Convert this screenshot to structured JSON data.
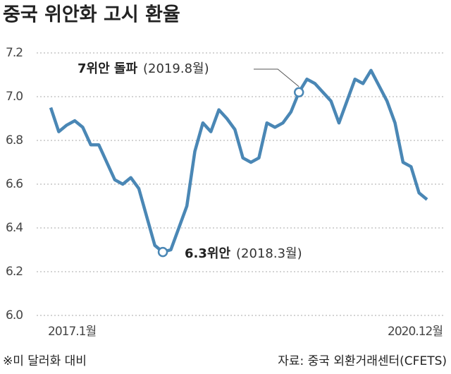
{
  "chart_data": {
    "type": "line",
    "title": "중국 위안화 고시 환율",
    "note": "※미 달러화 대비",
    "source": "자료: 중국 외환거래센터(CFETS)",
    "annotations": [
      {
        "bold": "6.3위안",
        "text": "(2018.3월)"
      },
      {
        "bold": "7위안 돌파",
        "text": "(2019.8월)"
      }
    ],
    "categories": [
      "2017.1월",
      null,
      null,
      null,
      null,
      null,
      null,
      null,
      null,
      null,
      null,
      null,
      null,
      null,
      null,
      null,
      null,
      null,
      null,
      null,
      null,
      null,
      null,
      null,
      null,
      null,
      null,
      null,
      null,
      null,
      null,
      null,
      null,
      null,
      null,
      null,
      null,
      null,
      null,
      null,
      null,
      null,
      null,
      null,
      null,
      null,
      null,
      "2020.12월"
    ],
    "values": [
      6.95,
      6.84,
      6.87,
      6.89,
      6.86,
      6.78,
      6.78,
      6.7,
      6.62,
      6.6,
      6.63,
      6.58,
      6.45,
      6.32,
      6.29,
      6.3,
      6.4,
      6.5,
      6.75,
      6.88,
      6.84,
      6.94,
      6.9,
      6.85,
      6.72,
      6.7,
      6.72,
      6.88,
      6.86,
      6.88,
      6.93,
      7.02,
      7.08,
      7.06,
      7.02,
      6.98,
      6.88,
      6.98,
      7.08,
      7.06,
      7.12,
      7.05,
      6.98,
      6.88,
      6.7,
      6.68,
      6.56,
      6.53
    ],
    "color": "#4a87b5",
    "ylim": [
      6.0,
      7.2
    ],
    "yticks": [
      {
        "value": 6.0,
        "label": "6.0"
      },
      6.2,
      6.4,
      6.6,
      6.8,
      {
        "value": 7.0,
        "label": "7.0"
      },
      7.2
    ],
    "grid": true
  }
}
